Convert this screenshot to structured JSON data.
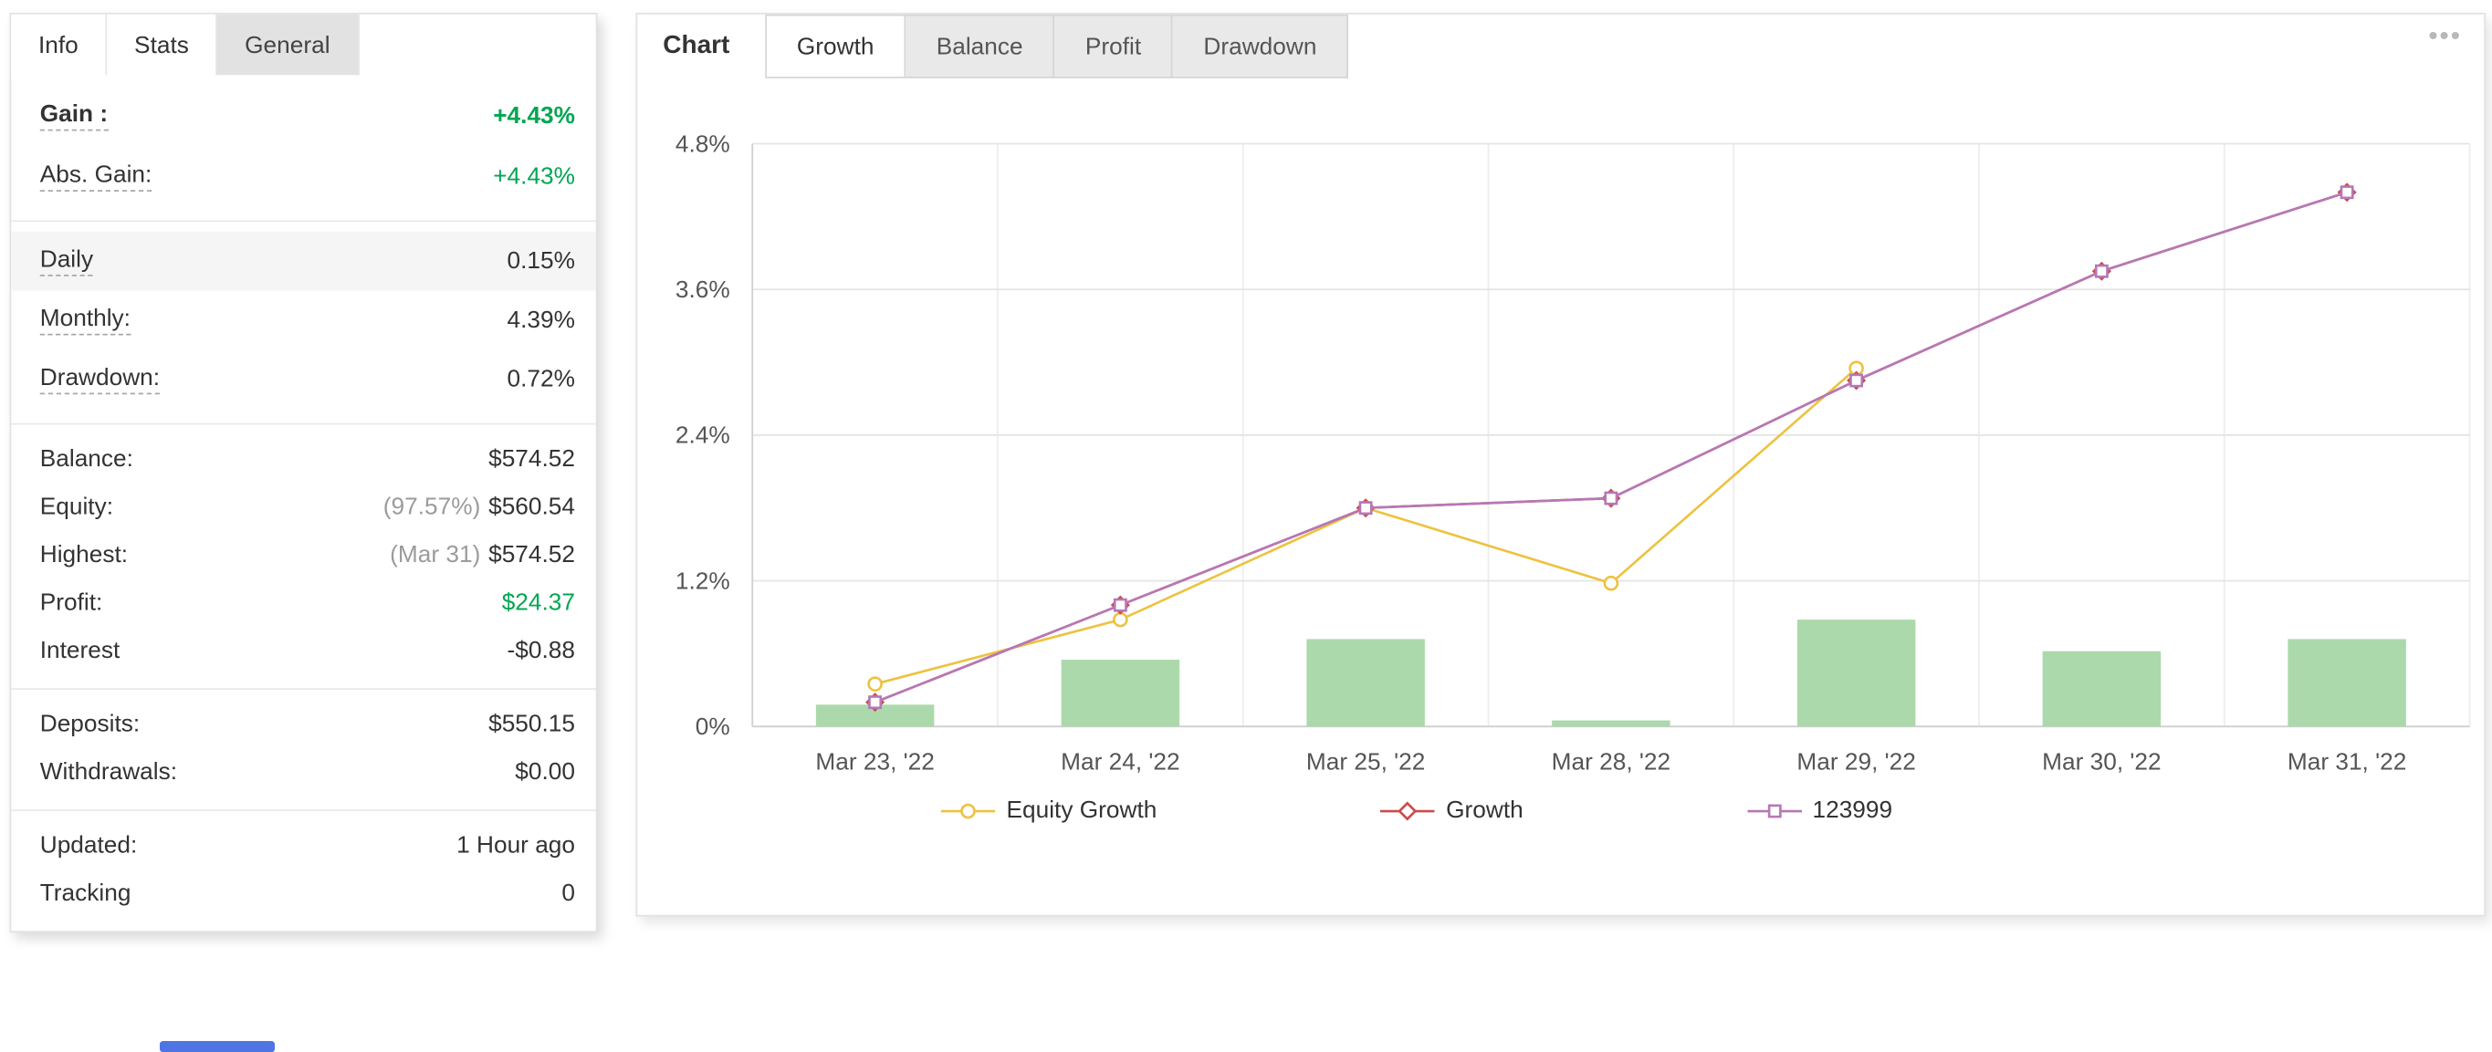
{
  "stats": {
    "tabs": [
      "Info",
      "Stats",
      "General"
    ],
    "rows": {
      "gain": {
        "label": "Gain :",
        "value": "+4.43%"
      },
      "abs_gain": {
        "label": "Abs. Gain:",
        "value": "+4.43%"
      },
      "daily": {
        "label": "Daily",
        "value": "0.15%"
      },
      "monthly": {
        "label": "Monthly:",
        "value": "4.39%"
      },
      "drawdown": {
        "label": "Drawdown:",
        "value": "0.72%"
      },
      "balance": {
        "label": "Balance:",
        "value": "$574.52"
      },
      "equity": {
        "label": "Equity:",
        "prefix": "(97.57%)",
        "value": "$560.54"
      },
      "highest": {
        "label": "Highest:",
        "prefix": "(Mar 31)",
        "value": "$574.52"
      },
      "profit": {
        "label": "Profit:",
        "value": "$24.37"
      },
      "interest": {
        "label": "Interest",
        "value": "-$0.88"
      },
      "deposits": {
        "label": "Deposits:",
        "value": "$550.15"
      },
      "withdrawals": {
        "label": "Withdrawals:",
        "value": "$0.00"
      },
      "updated": {
        "label": "Updated:",
        "value": "1 Hour ago"
      },
      "tracking": {
        "label": "Tracking",
        "value": "0"
      }
    }
  },
  "chart_panel": {
    "title": "Chart",
    "tabs": [
      "Growth",
      "Balance",
      "Profit",
      "Drawdown"
    ],
    "active_tab": "Growth",
    "menu_icon": "•••"
  },
  "colors": {
    "gain_green": "#00a651",
    "bar_green": "#abd9ab",
    "equity_yellow": "#edc240",
    "growth_red": "#cb4b4b",
    "purple_123999": "#b678b6"
  },
  "chart_data": {
    "type": "line",
    "title": "Growth",
    "categories": [
      "Mar 23, '22",
      "Mar 24, '22",
      "Mar 25, '22",
      "Mar 28, '22",
      "Mar 29, '22",
      "Mar 30, '22",
      "Mar 31, '22"
    ],
    "series": [
      {
        "name": "Equity Growth",
        "type": "line",
        "marker": "circle",
        "color": "#edc240",
        "values": [
          0.35,
          0.88,
          1.8,
          1.18,
          2.95,
          null,
          null
        ]
      },
      {
        "name": "Growth",
        "type": "line",
        "marker": "diamond",
        "color": "#cb4b4b",
        "values": [
          0.2,
          1.0,
          1.8,
          1.88,
          2.85,
          3.75,
          4.4
        ]
      },
      {
        "name": "123999",
        "type": "line",
        "marker": "square",
        "color": "#b678b6",
        "values": [
          0.2,
          1.0,
          1.8,
          1.88,
          2.85,
          3.75,
          4.4
        ]
      }
    ],
    "bars": {
      "name": "daily-profit-bars",
      "color": "#abd9ab",
      "values": [
        0.18,
        0.55,
        0.72,
        0.05,
        0.88,
        0.62,
        0.72
      ]
    },
    "xlabel": "",
    "ylabel": "",
    "ylim": [
      0,
      4.8
    ],
    "yticks": [
      {
        "value": 0,
        "label": "0%"
      },
      {
        "value": 1.2,
        "label": "1.2%"
      },
      {
        "value": 2.4,
        "label": "2.4%"
      },
      {
        "value": 3.6,
        "label": "3.6%"
      },
      {
        "value": 4.8,
        "label": "4.8%"
      }
    ],
    "grid": true,
    "legend_position": "bottom"
  }
}
